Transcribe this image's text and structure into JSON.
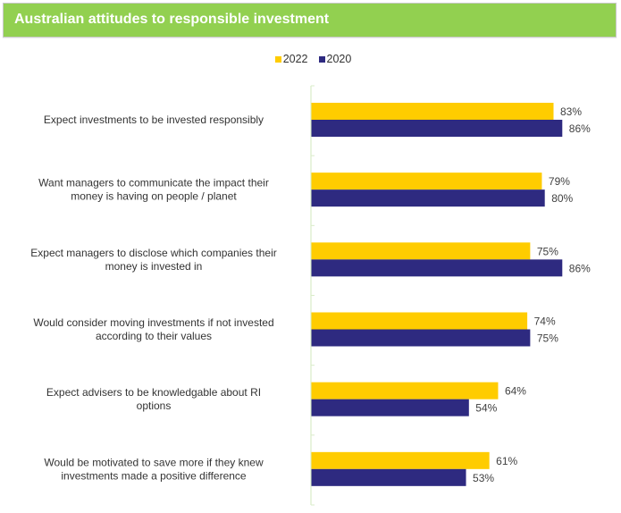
{
  "header": {
    "title": "Australian attitudes to responsible investment"
  },
  "colors": {
    "header_bg": "#92D050",
    "series_2022": "#FFCC00",
    "series_2020": "#2E2A80",
    "axis": "#d9ecc9"
  },
  "legend": [
    {
      "label": "2022",
      "color": "#FFCC00"
    },
    {
      "label": "2020",
      "color": "#2E2A80"
    }
  ],
  "chart_data": {
    "type": "bar",
    "orientation": "horizontal",
    "title": "Australian attitudes to responsible investment",
    "xlabel": "",
    "ylabel": "",
    "xlim": [
      0,
      100
    ],
    "grid": false,
    "legend_position": "top-center",
    "value_suffix": "%",
    "categories": [
      [
        "Expect investments to be invested responsibly"
      ],
      [
        "Want managers to communicate the impact their",
        "money is having on people / planet"
      ],
      [
        "Expect managers to disclose which companies their",
        "money is invested in"
      ],
      [
        "Would consider moving investments if not invested",
        "according to their values"
      ],
      [
        "Expect advisers to be knowledgable about RI",
        "options"
      ],
      [
        "Would be motivated to save more if they knew",
        "investments made a positive difference"
      ]
    ],
    "series": [
      {
        "name": "2022",
        "color": "#FFCC00",
        "values": [
          83,
          79,
          75,
          74,
          64,
          61
        ]
      },
      {
        "name": "2020",
        "color": "#2E2A80",
        "values": [
          86,
          80,
          86,
          75,
          54,
          53
        ]
      }
    ]
  }
}
